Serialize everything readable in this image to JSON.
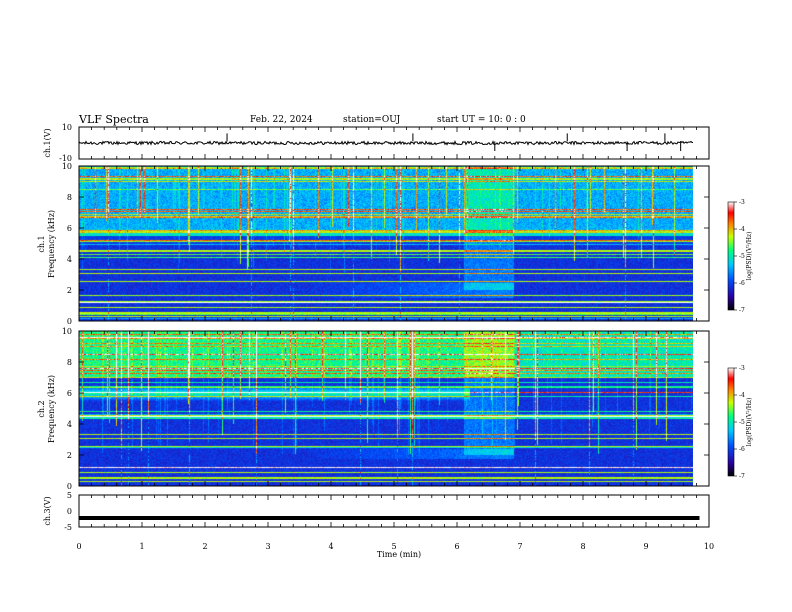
{
  "header": {
    "title": "VLF Spectra",
    "date": "Feb. 22, 2024",
    "station": "station=OUJ",
    "start_ut": "start UT =   10: 0  : 0"
  },
  "colors": {
    "background_spectrogram": "#00007a",
    "cb_low": "#000000",
    "cb_mid": "#00ff7f",
    "cb_high": "#ffffff"
  },
  "chart_data": [
    {
      "type": "line",
      "panel": "ch1",
      "ylabel": "ch.1(V)",
      "ylim": [
        -10,
        10
      ],
      "yticks": [
        "10",
        "-10"
      ],
      "x": [
        0,
        9.85
      ],
      "values": [
        0,
        0
      ],
      "xlim": [
        0,
        10
      ]
    },
    {
      "type": "heatmap",
      "panel": "ch1-spectrogram",
      "ylabel": "ch.1\nFrequency (kHz)",
      "ylim": [
        0,
        10
      ],
      "yticks": [
        "0",
        "2",
        "4",
        "6",
        "8",
        "10"
      ],
      "xlim": [
        0,
        10
      ],
      "colorbar": {
        "label": "log(PSD)(V²/Hz)",
        "range": [
          -7,
          -3
        ],
        "ticks": [
          "-3",
          "-4",
          "-5",
          "-6",
          "-7"
        ]
      },
      "features": {
        "bright_band_khz": [
          5.0,
          6.0
        ],
        "hiss_band_khz": [
          1.5,
          2.5
        ],
        "hiss_end_min": 6.9
      }
    },
    {
      "type": "heatmap",
      "panel": "ch2-spectrogram",
      "ylabel": "ch.2\nFrequency (kHz)",
      "ylim": [
        0,
        10
      ],
      "yticks": [
        "0",
        "2",
        "4",
        "6",
        "8",
        "10"
      ],
      "xlim": [
        0,
        10
      ],
      "colorbar": {
        "label": "log(PSD)(V²/Hz)",
        "range": [
          -7,
          -3
        ],
        "ticks": [
          "-3",
          "-4",
          "-5",
          "-6",
          "-7"
        ]
      },
      "features": {
        "bright_band_khz": [
          5.5,
          6.5
        ],
        "hiss_band_khz": [
          1.8,
          2.4
        ],
        "hiss_end_min": 6.9
      }
    },
    {
      "type": "line",
      "panel": "ch3",
      "ylabel": "ch.3(V)",
      "ylim": [
        -5,
        5
      ],
      "yticks": [
        "5",
        "0",
        "-5"
      ],
      "x": [
        0,
        9.85
      ],
      "values": [
        -2.2,
        -2.2
      ],
      "xlim": [
        0,
        10
      ],
      "xlabel": "Time (min)",
      "xticks": [
        "0",
        "1",
        "2",
        "3",
        "4",
        "5",
        "6",
        "7",
        "8",
        "9",
        "10"
      ]
    }
  ]
}
